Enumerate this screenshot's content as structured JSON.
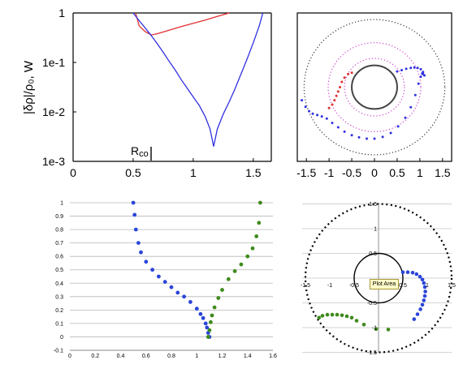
{
  "chart_data": [
    {
      "type": "line",
      "panel": "top-left",
      "ylabel": "|δρ|/ρ₀, W",
      "xlim": [
        0,
        1.65
      ],
      "ylim": [
        0.001,
        1
      ],
      "yscale": "log",
      "xticks": [
        "0",
        "0.5",
        "1",
        "1.5"
      ],
      "yticks": [
        "1e-3",
        "1e-2",
        "1e-1",
        "1"
      ],
      "annotation": "R",
      "annotation_sub": "co",
      "series": [
        {
          "color": "#e03030",
          "x": [
            0.52,
            0.55,
            0.6,
            0.65,
            0.7,
            0.8,
            0.9,
            1.0,
            1.1,
            1.2,
            1.3
          ],
          "y": [
            1.0,
            0.55,
            0.42,
            0.36,
            0.38,
            0.45,
            0.53,
            0.62,
            0.72,
            0.85,
            1.0
          ]
        },
        {
          "color": "#3030e0",
          "x": [
            0.5,
            0.55,
            0.6,
            0.65,
            0.7,
            0.75,
            0.8,
            0.85,
            0.9,
            0.95,
            1.0,
            1.05,
            1.1,
            1.14,
            1.17,
            1.2,
            1.25,
            1.3,
            1.35,
            1.4,
            1.45,
            1.5,
            1.55,
            1.58
          ],
          "y": [
            1.0,
            0.7,
            0.5,
            0.35,
            0.24,
            0.16,
            0.105,
            0.07,
            0.045,
            0.03,
            0.02,
            0.0135,
            0.008,
            0.0045,
            0.002,
            0.0045,
            0.009,
            0.016,
            0.03,
            0.06,
            0.12,
            0.25,
            0.55,
            1.0
          ]
        }
      ]
    },
    {
      "type": "scatter",
      "panel": "top-right",
      "xlim": [
        -1.7,
        1.7
      ],
      "ylim": [
        -1.7,
        1.7
      ],
      "xticks": [
        "-1.5",
        "-1",
        "-0.5",
        "0",
        "0.5",
        "1",
        "1.5"
      ],
      "circles": [
        {
          "r": 1.55,
          "color": "#333333",
          "style": "dotted"
        },
        {
          "r": 1.02,
          "color": "#cc44cc",
          "style": "dotted"
        },
        {
          "r": 0.66,
          "color": "#cc44cc",
          "style": "dotted"
        },
        {
          "r": 0.5,
          "color": "#444444",
          "style": "solid"
        }
      ],
      "series": [
        {
          "color": "#e03030",
          "x": [
            -0.5,
            -0.58,
            -0.66,
            -0.72,
            -0.76,
            -0.8,
            -0.84,
            -0.88,
            -0.93,
            -1.0
          ],
          "y": [
            0.33,
            0.3,
            0.22,
            0.12,
            0.0,
            -0.1,
            -0.2,
            -0.3,
            -0.4,
            -0.48
          ]
        },
        {
          "color": "#3030e0",
          "x": [
            -1.6,
            -1.52,
            -1.44,
            -1.36,
            -1.26,
            -1.16,
            -1.05,
            -0.93,
            -0.8,
            -0.66,
            -0.5,
            -0.34,
            -0.17,
            0.0,
            0.18,
            0.36,
            0.52,
            0.68,
            0.8,
            0.9,
            0.97,
            1.02,
            1.05,
            1.07
          ],
          "y": [
            -0.3,
            -0.45,
            -0.55,
            -0.61,
            -0.64,
            -0.67,
            -0.72,
            -0.82,
            -0.92,
            -1.02,
            -1.1,
            -1.15,
            -1.18,
            -1.18,
            -1.14,
            -1.05,
            -0.9,
            -0.7,
            -0.46,
            -0.18,
            0.08,
            0.24,
            0.31,
            0.3
          ]
        },
        {
          "color": "#3030e0",
          "x": [
            0.5,
            0.6,
            0.7,
            0.8,
            0.88,
            0.95,
            1.02,
            1.07,
            1.1
          ],
          "y": [
            0.36,
            0.39,
            0.42,
            0.44,
            0.45,
            0.44,
            0.41,
            0.35,
            0.27
          ]
        }
      ]
    },
    {
      "type": "scatter",
      "panel": "bottom-left",
      "xlim": [
        0,
        1.6
      ],
      "ylim": [
        -0.1,
        1
      ],
      "xticks": [
        "0",
        "0.2",
        "0.4",
        "0.6",
        "0.8",
        "1",
        "1.2",
        "1.4",
        "1.6"
      ],
      "yticks": [
        "-0.1",
        "0",
        "0.1",
        "0.2",
        "0.3",
        "0.4",
        "0.5",
        "0.6",
        "0.7",
        "0.8",
        "0.9",
        "1"
      ],
      "series": [
        {
          "color": "#2a45d8",
          "x": [
            0.5,
            0.51,
            0.52,
            0.54,
            0.56,
            0.6,
            0.65,
            0.7,
            0.75,
            0.8,
            0.85,
            0.9,
            0.95,
            1.0,
            1.03,
            1.05,
            1.07,
            1.08,
            1.09,
            1.1
          ],
          "y": [
            1.0,
            0.91,
            0.8,
            0.7,
            0.63,
            0.56,
            0.5,
            0.45,
            0.41,
            0.37,
            0.33,
            0.3,
            0.26,
            0.21,
            0.17,
            0.14,
            0.1,
            0.07,
            0.03,
            0.0
          ]
        },
        {
          "color": "#3e8a1c",
          "x": [
            1.09,
            1.1,
            1.11,
            1.12,
            1.14,
            1.17,
            1.2,
            1.25,
            1.3,
            1.35,
            1.4,
            1.44,
            1.47,
            1.49,
            1.5
          ],
          "y": [
            0.0,
            0.05,
            0.11,
            0.16,
            0.22,
            0.29,
            0.35,
            0.43,
            0.49,
            0.54,
            0.6,
            0.66,
            0.75,
            0.85,
            1.0
          ]
        }
      ]
    },
    {
      "type": "scatter",
      "panel": "bottom-right",
      "xlim": [
        -1.6,
        1.6
      ],
      "ylim": [
        -1.5,
        1.5
      ],
      "xticks": [
        "-1.5",
        "-1",
        "-0.5",
        "0.5",
        "1",
        "1.5"
      ],
      "yticks": [
        "1.5",
        "1",
        "0.5",
        "-0.5",
        "-1",
        "-1.5"
      ],
      "tooltip": "Plot Area",
      "circles": [
        {
          "r": 1.5,
          "color": "#000000",
          "style": "dotted"
        },
        {
          "r": 0.5,
          "color": "#000000",
          "style": "solid"
        }
      ],
      "series": [
        {
          "color": "#2a45d8",
          "x": [
            0.5,
            0.6,
            0.7,
            0.78,
            0.85,
            0.9,
            0.93,
            0.95,
            0.96,
            0.95,
            0.93,
            0.9,
            0.86,
            0.8,
            0.73
          ],
          "y": [
            0.12,
            0.12,
            0.11,
            0.08,
            0.03,
            -0.03,
            -0.1,
            -0.18,
            -0.27,
            -0.36,
            -0.45,
            -0.54,
            -0.63,
            -0.73,
            -0.83
          ]
        },
        {
          "color": "#3e8a1c",
          "x": [
            -1.22,
            -1.15,
            -1.05,
            -0.95,
            -0.85,
            -0.75,
            -0.65,
            -0.55,
            -0.45,
            -0.3,
            -0.05,
            0.2
          ],
          "y": [
            -0.8,
            -0.76,
            -0.74,
            -0.74,
            -0.74,
            -0.75,
            -0.77,
            -0.8,
            -0.86,
            -0.94,
            -1.03,
            -1.04
          ]
        }
      ]
    }
  ]
}
